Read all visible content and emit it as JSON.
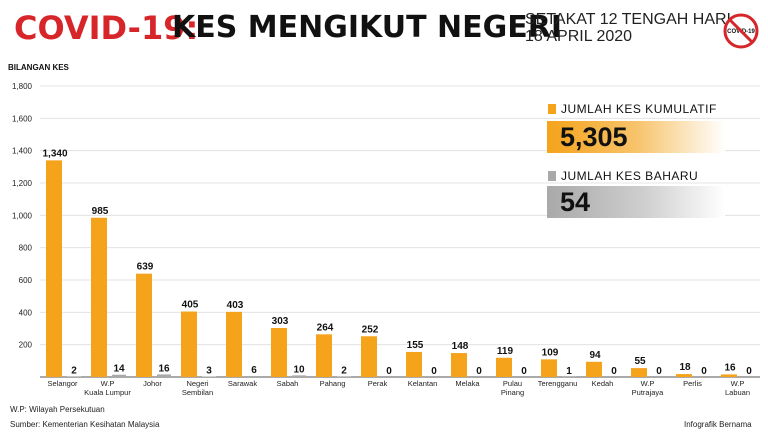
{
  "header": {
    "covid_title": "COVID-19:",
    "main_title": "KES MENGIKUT NEGERI",
    "subtitle_line1": "SETAKAT 12 TENGAH HARI,",
    "subtitle_line2": "18 APRIL 2020",
    "badge_text": "COVID-19"
  },
  "legend": {
    "cumulative_label": "JUMLAH KES KUMULATIF",
    "cumulative_value": "5,305",
    "new_label": "JUMLAH KES BAHARU",
    "new_value": "54"
  },
  "footer": {
    "note": "W.P: Wilayah Persekutuan",
    "source": "Sumber: Kementerian Kesihatan Malaysia",
    "credit": "Infografik Bernama"
  },
  "colors": {
    "cumulative": "#f5a31a",
    "new": "#a9a9a9",
    "title_red": "#d7262a"
  },
  "chart_data": {
    "type": "bar",
    "ylabel": "BILANGAN KES",
    "ylim": [
      0,
      1800
    ],
    "yticks": [
      0,
      200,
      400,
      600,
      800,
      1000,
      1200,
      1400,
      1600,
      1800
    ],
    "ytick_labels": [
      "",
      "200",
      "400",
      "600",
      "800",
      "1,000",
      "1,200",
      "1,400",
      "1,600",
      "1,800"
    ],
    "grid": true,
    "legend_position": "top-right",
    "categories": [
      [
        "Selangor"
      ],
      [
        "W.P",
        "Kuala Lumpur"
      ],
      [
        "Johor"
      ],
      [
        "Negeri",
        "Sembilan"
      ],
      [
        "Sarawak"
      ],
      [
        "Sabah"
      ],
      [
        "Pahang"
      ],
      [
        "Perak"
      ],
      [
        "Kelantan"
      ],
      [
        "Melaka"
      ],
      [
        "Pulau",
        "Pinang"
      ],
      [
        "Terengganu"
      ],
      [
        "Kedah"
      ],
      [
        "W.P",
        "Putrajaya"
      ],
      [
        "Perlis"
      ],
      [
        "W.P",
        "Labuan"
      ]
    ],
    "series": [
      {
        "name": "JUMLAH KES KUMULATIF",
        "values": [
          1340,
          985,
          639,
          405,
          403,
          303,
          264,
          252,
          155,
          148,
          119,
          109,
          94,
          55,
          18,
          16
        ],
        "labels": [
          "1,340",
          "985",
          "639",
          "405",
          "403",
          "303",
          "264",
          "252",
          "155",
          "148",
          "119",
          "109",
          "94",
          "55",
          "18",
          "16"
        ]
      },
      {
        "name": "JUMLAH KES BAHARU",
        "values": [
          2,
          14,
          16,
          3,
          6,
          10,
          2,
          0,
          0,
          0,
          0,
          1,
          0,
          0,
          0,
          0
        ],
        "labels": [
          "2",
          "14",
          "16",
          "3",
          "6",
          "10",
          "2",
          "0",
          "0",
          "0",
          "0",
          "1",
          "0",
          "0",
          "0",
          "0"
        ]
      }
    ]
  }
}
